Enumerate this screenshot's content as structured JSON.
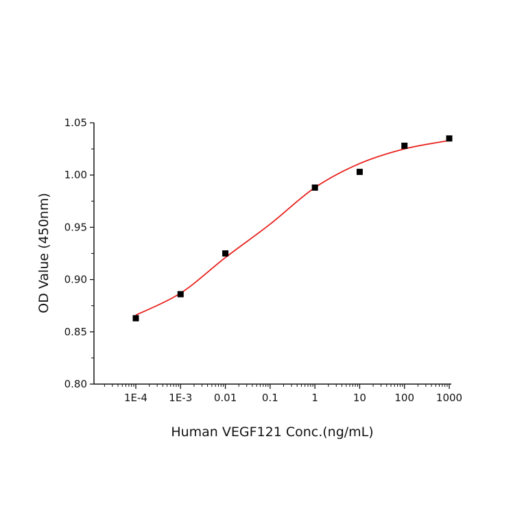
{
  "chart_data": {
    "type": "scatter",
    "title": "",
    "xlabel": "Human VEGF121 Conc.(ng/mL)",
    "ylabel": "OD Value (450nm)",
    "x_scale": "log",
    "xlim": [
      0.0001,
      1000
    ],
    "ylim": [
      0.8,
      1.05
    ],
    "grid": false,
    "x_ticks": [
      0.0001,
      0.001,
      0.01,
      0.1,
      1,
      10,
      100,
      1000
    ],
    "x_tick_labels": [
      "1E-4",
      "1E-3",
      "0.01",
      "0.1",
      "1",
      "10",
      "100",
      "1000"
    ],
    "y_ticks": [
      0.8,
      0.85,
      0.9,
      0.95,
      1.0,
      1.05
    ],
    "y_tick_labels": [
      "0.80",
      "0.85",
      "0.90",
      "0.95",
      "1.00",
      "1.05"
    ],
    "series": [
      {
        "type": "scatter",
        "marker": "square",
        "color": "#000000",
        "x": [
          0.0001,
          0.001,
          0.01,
          1,
          10,
          100,
          1000
        ],
        "y": [
          0.863,
          0.886,
          0.925,
          0.988,
          1.003,
          1.028,
          1.035
        ]
      },
      {
        "type": "line",
        "color": "#e8201c",
        "x": [
          0.0001,
          0.001,
          0.01,
          0.1,
          1,
          10,
          100,
          1000
        ],
        "y": [
          0.866,
          0.887,
          0.921,
          0.953,
          0.988,
          1.011,
          1.025,
          1.033
        ]
      }
    ]
  }
}
